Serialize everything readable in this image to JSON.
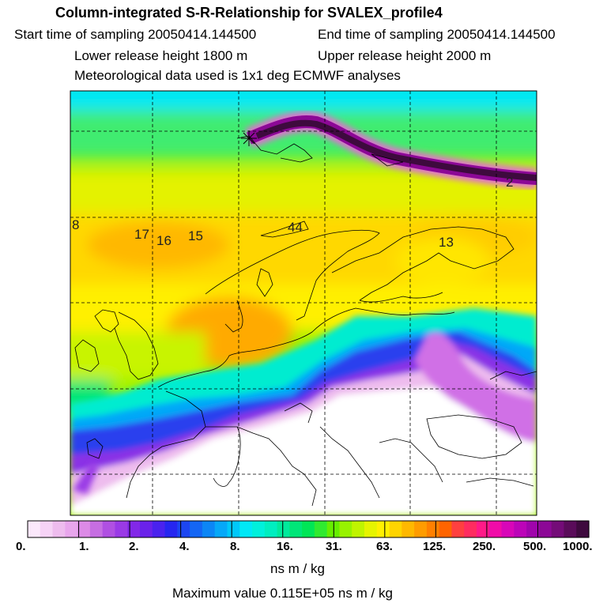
{
  "header": {
    "title": "Column-integrated S-R-Relationship for SVALEX_profile4",
    "start_time": "Start time of sampling 20050414.144500",
    "end_time": "End time of sampling 20050414.144500",
    "lower_release": "Lower release height 1800 m",
    "upper_release": "Upper release height 2000 m",
    "met_data": "Meteorological data used is 1x1 deg ECMWF analyses"
  },
  "map": {
    "contour_labels": [
      "8",
      "17",
      "16",
      "15",
      "44",
      "13",
      "2"
    ]
  },
  "colorbar": {
    "tick_labels": [
      "0.",
      "1.",
      "2.",
      "4.",
      "8.",
      "16.",
      "31.",
      "63.",
      "125.",
      "250.",
      "500.",
      "1000."
    ],
    "colors": [
      "#fbe8fb",
      "#f6d3f6",
      "#eebcee",
      "#e8a6ec",
      "#dc8ae6",
      "#c66ee2",
      "#b050e2",
      "#9a3ae6",
      "#8228e8",
      "#6a22ea",
      "#4a22ee",
      "#2626f0",
      "#1c46f2",
      "#1466f4",
      "#0c86f6",
      "#06a8f8",
      "#00c8fa",
      "#00e8f6",
      "#00f0dc",
      "#00eec0",
      "#00ea9c",
      "#00e678",
      "#00e656",
      "#30ea30",
      "#66ee00",
      "#98f200",
      "#c0f400",
      "#e6f400",
      "#fff000",
      "#ffd400",
      "#ffb800",
      "#ff9c00",
      "#ff8000",
      "#ff6400",
      "#ff4040",
      "#ff2c60",
      "#ff1a88",
      "#f00ca8",
      "#d806b8",
      "#bc04b8",
      "#a004ac",
      "#8c0896",
      "#740c78",
      "#5a0c5a",
      "#3e0a3e"
    ],
    "unit": "ns m / kg"
  },
  "footer": {
    "max_value": "Maximum value  0.115E+05 ns m / kg"
  }
}
